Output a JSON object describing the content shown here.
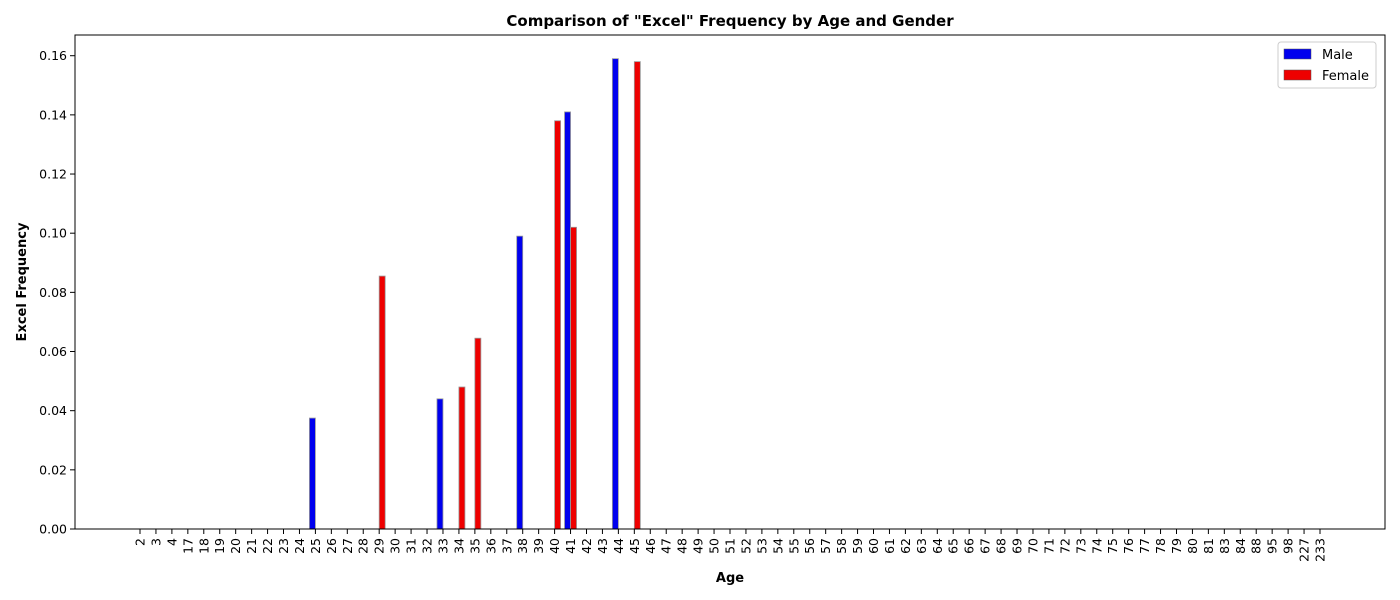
{
  "chart_data": {
    "type": "bar",
    "title": "Comparison of \"Excel\" Frequency by Age and Gender",
    "xlabel": "Age",
    "ylabel": "Excel Frequency",
    "ylim": [
      0,
      0.167
    ],
    "yticks": [
      "0.00",
      "0.02",
      "0.04",
      "0.06",
      "0.08",
      "0.10",
      "0.12",
      "0.14",
      "0.16"
    ],
    "categories": [
      "2",
      "3",
      "4",
      "17",
      "18",
      "19",
      "20",
      "21",
      "22",
      "23",
      "24",
      "25",
      "26",
      "27",
      "28",
      "29",
      "30",
      "31",
      "32",
      "33",
      "34",
      "35",
      "36",
      "37",
      "38",
      "39",
      "40",
      "41",
      "42",
      "43",
      "44",
      "45",
      "46",
      "47",
      "48",
      "49",
      "50",
      "51",
      "52",
      "53",
      "54",
      "55",
      "56",
      "57",
      "58",
      "59",
      "60",
      "61",
      "62",
      "63",
      "64",
      "65",
      "66",
      "67",
      "68",
      "69",
      "70",
      "71",
      "72",
      "73",
      "74",
      "75",
      "76",
      "77",
      "78",
      "79",
      "80",
      "81",
      "83",
      "84",
      "88",
      "95",
      "98",
      "227",
      "233"
    ],
    "series": [
      {
        "name": "Male",
        "color": "#0000ee",
        "values": [
          0,
          0,
          0,
          0,
          0,
          0,
          0,
          0,
          0,
          0,
          0,
          0.0375,
          0,
          0,
          0,
          0,
          0,
          0,
          0,
          0.044,
          0,
          0,
          0,
          0,
          0.099,
          0,
          0,
          0.141,
          0,
          0,
          0.159,
          0,
          0,
          0,
          0,
          0,
          0,
          0,
          0,
          0,
          0,
          0,
          0,
          0,
          0,
          0,
          0,
          0,
          0,
          0,
          0,
          0,
          0,
          0,
          0,
          0,
          0,
          0,
          0,
          0,
          0,
          0,
          0,
          0,
          0,
          0,
          0,
          0,
          0,
          0,
          0,
          0,
          0,
          0,
          0
        ]
      },
      {
        "name": "Female",
        "color": "#ee0000",
        "values": [
          0,
          0,
          0,
          0,
          0,
          0,
          0,
          0,
          0,
          0,
          0,
          0,
          0,
          0,
          0,
          0.0855,
          0,
          0,
          0,
          0,
          0.048,
          0.0645,
          0,
          0,
          0,
          0,
          0.138,
          0.102,
          0,
          0,
          0,
          0.158,
          0,
          0,
          0,
          0,
          0,
          0,
          0,
          0,
          0,
          0,
          0,
          0,
          0,
          0,
          0,
          0,
          0,
          0,
          0,
          0,
          0,
          0,
          0,
          0,
          0,
          0,
          0,
          0,
          0,
          0,
          0,
          0,
          0,
          0,
          0,
          0,
          0,
          0,
          0,
          0,
          0,
          0,
          0
        ]
      }
    ],
    "legend_position": "top-right",
    "grid": false
  }
}
